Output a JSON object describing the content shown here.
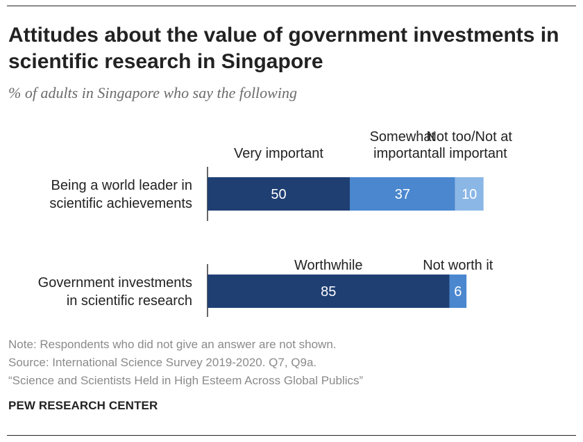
{
  "title": "Attitudes about the value of government investments in scientific research in Singapore",
  "subtitle": "% of adults in Singapore who say the following",
  "colors": {
    "dark": "#1f3f73",
    "mid": "#4a87cf",
    "light": "#8bb7e6",
    "label_on_dark": "#ffffff",
    "text": "#222222",
    "axis": "#333333"
  },
  "chart_data": {
    "type": "bar",
    "orientation": "horizontal",
    "stacked": true,
    "xlim": [
      0,
      100
    ],
    "rows": [
      {
        "category": [
          "Being a world leader in",
          "scientific achievements"
        ],
        "segments": [
          {
            "name": [
              "Very important"
            ],
            "value": 50,
            "color": "dark"
          },
          {
            "name": [
              "Somewhat",
              "important"
            ],
            "value": 37,
            "color": "mid"
          },
          {
            "name": [
              "Not too/Not at",
              "all important"
            ],
            "value": 10,
            "color": "light"
          }
        ]
      },
      {
        "category": [
          "Government investments",
          "in scientific research"
        ],
        "segments": [
          {
            "name": [
              "Worthwhile"
            ],
            "value": 85,
            "color": "dark"
          },
          {
            "name": [
              "Not worth it"
            ],
            "value": 6,
            "color": "mid"
          }
        ]
      }
    ]
  },
  "notes": {
    "note": "Note: Respondents who did not give an answer are not shown.",
    "source": "Source: International Science Survey 2019-2020. Q7, Q9a.",
    "report": "“Science and Scientists Held in High Esteem Across Global Publics”"
  },
  "brand": "PEW RESEARCH CENTER"
}
